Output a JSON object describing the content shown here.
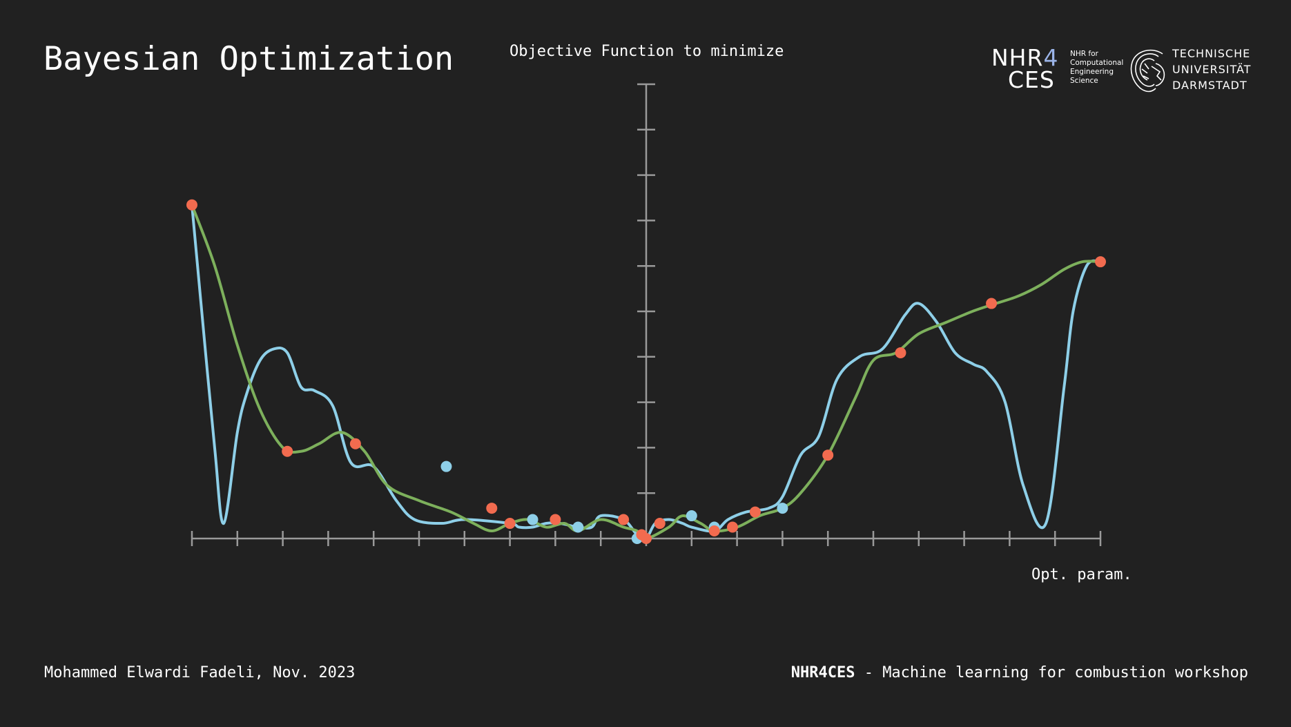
{
  "slide": {
    "title": "Bayesian Optimization",
    "footer_author": "Mohammed Elwardi Fadeli, Nov. 2023",
    "footer_brand": "NHR4CES",
    "footer_text": " - Machine learning for combustion workshop"
  },
  "logos": {
    "nhr_line1": "NHR",
    "nhr_four": "4",
    "nhr_line2": "CES",
    "nhr_small": "NHR for\nComputational\nEngineering\nScience",
    "tud_text": "TECHNISCHE\nUNIVERSITÄT\nDARMSTADT"
  },
  "chart_data": {
    "type": "line",
    "title": "Objective Function to minimize",
    "xlabel": "Opt. param.",
    "ylabel": "",
    "xlim": [
      -1,
      1
    ],
    "ylim": [
      0,
      1
    ],
    "x_ticks": 20,
    "y_ticks": 10,
    "grid": false,
    "colors": {
      "objective": "#8ecfe8",
      "surrogate": "#7db05c",
      "samples": "#f26b4f",
      "axis": "#9a9a9a"
    },
    "series": [
      {
        "role": "objective",
        "x": [
          -1.0,
          -0.98,
          -0.95,
          -0.93,
          -0.9,
          -0.88,
          -0.85,
          -0.82,
          -0.79,
          -0.76,
          -0.73,
          -0.69,
          -0.65,
          -0.6,
          -0.55,
          -0.51,
          -0.45,
          -0.4,
          -0.3,
          -0.28,
          -0.25,
          -0.22,
          -0.19,
          -0.15,
          -0.12,
          -0.1,
          -0.05,
          -0.02,
          0.0,
          0.02,
          0.05,
          0.08,
          0.1,
          0.15,
          0.18,
          0.22,
          0.27,
          0.3,
          0.34,
          0.38,
          0.42,
          0.47,
          0.52,
          0.57,
          0.6,
          0.64,
          0.68,
          0.72,
          0.75,
          0.79,
          0.83,
          0.88,
          0.92,
          0.94,
          0.97,
          1.0
        ],
        "y": [
          0.88,
          0.62,
          0.24,
          0.04,
          0.28,
          0.38,
          0.47,
          0.5,
          0.49,
          0.4,
          0.39,
          0.35,
          0.2,
          0.19,
          0.1,
          0.05,
          0.04,
          0.05,
          0.04,
          0.03,
          0.03,
          0.04,
          0.04,
          0.03,
          0.03,
          0.06,
          0.05,
          0.01,
          0.0,
          0.04,
          0.05,
          0.04,
          0.03,
          0.02,
          0.05,
          0.07,
          0.08,
          0.11,
          0.22,
          0.27,
          0.42,
          0.48,
          0.5,
          0.59,
          0.62,
          0.57,
          0.49,
          0.46,
          0.44,
          0.36,
          0.14,
          0.04,
          0.4,
          0.6,
          0.72,
          0.73
        ],
        "points": [
          [
            -0.44,
            0.19
          ],
          [
            -0.25,
            0.05
          ],
          [
            -0.15,
            0.03
          ],
          [
            -0.02,
            0.0
          ],
          [
            0.1,
            0.06
          ],
          [
            0.15,
            0.03
          ],
          [
            0.3,
            0.08
          ]
        ]
      },
      {
        "role": "surrogate",
        "x": [
          -1.0,
          -0.95,
          -0.9,
          -0.85,
          -0.8,
          -0.76,
          -0.72,
          -0.67,
          -0.62,
          -0.57,
          -0.5,
          -0.43,
          -0.38,
          -0.34,
          -0.3,
          -0.26,
          -0.22,
          -0.18,
          -0.15,
          -0.1,
          -0.05,
          -0.02,
          0.0,
          0.05,
          0.08,
          0.12,
          0.15,
          0.2,
          0.25,
          0.3,
          0.34,
          0.4,
          0.46,
          0.5,
          0.55,
          0.6,
          0.66,
          0.72,
          0.77,
          0.82,
          0.87,
          0.92,
          0.96,
          1.0
        ],
        "y": [
          0.88,
          0.72,
          0.51,
          0.34,
          0.24,
          0.23,
          0.25,
          0.28,
          0.23,
          0.14,
          0.1,
          0.07,
          0.04,
          0.02,
          0.04,
          0.05,
          0.03,
          0.04,
          0.02,
          0.05,
          0.03,
          0.02,
          0.0,
          0.03,
          0.06,
          0.04,
          0.02,
          0.03,
          0.06,
          0.08,
          0.12,
          0.22,
          0.37,
          0.47,
          0.49,
          0.54,
          0.57,
          0.6,
          0.62,
          0.64,
          0.67,
          0.71,
          0.73,
          0.73
        ],
        "points": [
          [
            -1.0,
            0.88
          ],
          [
            -0.79,
            0.23
          ],
          [
            -0.64,
            0.25
          ],
          [
            -0.34,
            0.08
          ],
          [
            -0.3,
            0.04
          ],
          [
            -0.2,
            0.05
          ],
          [
            -0.05,
            0.05
          ],
          [
            -0.01,
            0.01
          ],
          [
            0.0,
            0.0
          ],
          [
            0.03,
            0.04
          ],
          [
            0.15,
            0.02
          ],
          [
            0.19,
            0.03
          ],
          [
            0.24,
            0.07
          ],
          [
            0.4,
            0.22
          ],
          [
            0.56,
            0.49
          ],
          [
            0.76,
            0.62
          ],
          [
            1.0,
            0.73
          ]
        ]
      }
    ]
  }
}
